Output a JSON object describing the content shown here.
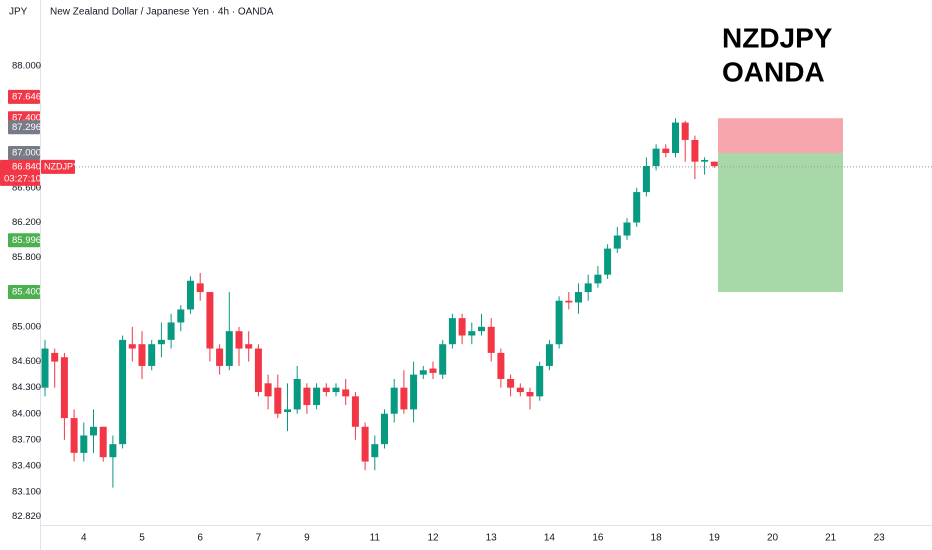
{
  "chart_data": {
    "type": "candlestick",
    "title": "New Zealand Dollar / Japanese Yen · 4h · OANDA",
    "currency": "JPY",
    "watermark": [
      "NZDJPY",
      "OANDA"
    ],
    "up_color": "#089981",
    "down_color": "#f23645",
    "ylim": [
      82.72,
      88.76
    ],
    "yticks": [
      {
        "value": 82.82,
        "label": "82.820"
      },
      {
        "value": 83.1,
        "label": "83.100"
      },
      {
        "value": 83.4,
        "label": "83.400"
      },
      {
        "value": 83.7,
        "label": "83.700"
      },
      {
        "value": 84.0,
        "label": "84.000"
      },
      {
        "value": 84.3,
        "label": "84.300"
      },
      {
        "value": 84.6,
        "label": "84.600"
      },
      {
        "value": 85.0,
        "label": "85.000"
      },
      {
        "value": 85.8,
        "label": "85.800"
      },
      {
        "value": 86.2,
        "label": "86.200"
      },
      {
        "value": 86.6,
        "label": "86.600"
      },
      {
        "value": 88.0,
        "label": "88.000"
      }
    ],
    "categories": [
      null,
      null,
      null,
      null,
      "4",
      null,
      null,
      null,
      null,
      null,
      "5",
      null,
      null,
      null,
      null,
      null,
      "6",
      null,
      null,
      null,
      null,
      null,
      "7",
      null,
      null,
      null,
      null,
      "9",
      null,
      null,
      null,
      null,
      null,
      null,
      "11",
      null,
      null,
      null,
      null,
      null,
      "12",
      null,
      null,
      null,
      null,
      null,
      "13",
      null,
      null,
      null,
      null,
      null,
      "14",
      null,
      null,
      null,
      null,
      "16",
      null,
      null,
      null,
      null,
      null,
      "18",
      null,
      null,
      null,
      null,
      null,
      "19",
      null,
      null,
      null,
      null,
      null,
      "20",
      null,
      null,
      null,
      null,
      null,
      "21",
      null,
      null,
      null,
      null,
      "23"
    ],
    "candles": [
      [
        84.3,
        84.85,
        84.2,
        84.75
      ],
      [
        84.7,
        84.75,
        84.3,
        84.6
      ],
      [
        84.65,
        84.7,
        83.7,
        83.95
      ],
      [
        83.95,
        84.05,
        83.45,
        83.55
      ],
      [
        83.55,
        83.9,
        83.45,
        83.75
      ],
      [
        83.75,
        84.05,
        83.55,
        83.85
      ],
      [
        83.85,
        83.85,
        83.45,
        83.5
      ],
      [
        83.5,
        83.75,
        83.15,
        83.65
      ],
      [
        83.65,
        84.9,
        83.6,
        84.85
      ],
      [
        84.8,
        85.0,
        84.6,
        84.75
      ],
      [
        84.8,
        84.95,
        84.4,
        84.55
      ],
      [
        84.55,
        84.85,
        84.5,
        84.8
      ],
      [
        84.8,
        85.05,
        84.65,
        84.85
      ],
      [
        84.85,
        85.15,
        84.75,
        85.05
      ],
      [
        85.05,
        85.25,
        84.95,
        85.2
      ],
      [
        85.2,
        85.58,
        85.15,
        85.53
      ],
      [
        85.5,
        85.62,
        85.3,
        85.4
      ],
      [
        85.4,
        85.4,
        84.6,
        84.75
      ],
      [
        84.75,
        84.8,
        84.45,
        84.55
      ],
      [
        84.55,
        85.4,
        84.5,
        84.95
      ],
      [
        84.95,
        85.0,
        84.55,
        84.75
      ],
      [
        84.8,
        84.95,
        84.6,
        84.75
      ],
      [
        84.75,
        84.8,
        84.2,
        84.25
      ],
      [
        84.35,
        84.45,
        84.05,
        84.2
      ],
      [
        84.3,
        84.45,
        83.95,
        84.0
      ],
      [
        84.02,
        84.35,
        83.8,
        84.05
      ],
      [
        84.05,
        84.55,
        84.0,
        84.4
      ],
      [
        84.3,
        84.35,
        84.0,
        84.1
      ],
      [
        84.1,
        84.35,
        84.05,
        84.3
      ],
      [
        84.3,
        84.35,
        84.2,
        84.25
      ],
      [
        84.25,
        84.35,
        84.2,
        84.3
      ],
      [
        84.28,
        84.4,
        84.1,
        84.2
      ],
      [
        84.2,
        84.25,
        83.7,
        83.85
      ],
      [
        83.85,
        83.9,
        83.35,
        83.45
      ],
      [
        83.5,
        83.75,
        83.35,
        83.65
      ],
      [
        83.65,
        84.05,
        83.6,
        84.0
      ],
      [
        84.0,
        84.4,
        83.9,
        84.3
      ],
      [
        84.3,
        84.5,
        84.0,
        84.05
      ],
      [
        84.05,
        84.6,
        83.9,
        84.45
      ],
      [
        84.45,
        84.55,
        84.4,
        84.5
      ],
      [
        84.52,
        84.6,
        84.4,
        84.47
      ],
      [
        84.45,
        84.85,
        84.4,
        84.8
      ],
      [
        84.8,
        85.15,
        84.75,
        85.1
      ],
      [
        85.1,
        85.15,
        84.8,
        84.9
      ],
      [
        84.9,
        85.05,
        84.8,
        84.95
      ],
      [
        84.95,
        85.15,
        84.9,
        85.0
      ],
      [
        85.0,
        85.1,
        84.6,
        84.7
      ],
      [
        84.7,
        84.75,
        84.3,
        84.4
      ],
      [
        84.4,
        84.45,
        84.2,
        84.3
      ],
      [
        84.3,
        84.35,
        84.2,
        84.25
      ],
      [
        84.25,
        84.3,
        84.05,
        84.2
      ],
      [
        84.2,
        84.6,
        84.15,
        84.55
      ],
      [
        84.55,
        84.85,
        84.5,
        84.8
      ],
      [
        84.8,
        85.35,
        84.75,
        85.3
      ],
      [
        85.3,
        85.4,
        85.2,
        85.28
      ],
      [
        85.28,
        85.5,
        85.15,
        85.4
      ],
      [
        85.4,
        85.6,
        85.3,
        85.5
      ],
      [
        85.5,
        85.7,
        85.45,
        85.6
      ],
      [
        85.6,
        85.95,
        85.55,
        85.9
      ],
      [
        85.9,
        86.15,
        85.85,
        86.05
      ],
      [
        86.05,
        86.25,
        86.0,
        86.2
      ],
      [
        86.2,
        86.6,
        86.15,
        86.55
      ],
      [
        86.55,
        86.95,
        86.5,
        86.85
      ],
      [
        86.85,
        87.1,
        86.8,
        87.05
      ],
      [
        87.05,
        87.1,
        86.95,
        87.0
      ],
      [
        87.0,
        87.4,
        86.95,
        87.35
      ],
      [
        87.35,
        87.37,
        86.9,
        87.15
      ],
      [
        87.15,
        87.2,
        86.7,
        86.9
      ],
      [
        86.9,
        86.95,
        86.75,
        86.92
      ],
      [
        86.9,
        86.9,
        86.83,
        86.85
      ]
    ],
    "position": {
      "stop": 87.4,
      "entry": 87.0,
      "target": 85.4,
      "stop_color": "#f7a6ad",
      "target_color": "#a8d8a8"
    },
    "current": {
      "value": 86.84,
      "label": "86.840",
      "countdown": "03:27:10",
      "symbol": "NZDJPY",
      "color": "#f23645"
    },
    "badges": [
      {
        "value": 87.646,
        "label": "87.646",
        "color": "#f23645"
      },
      {
        "value": 87.4,
        "label": "87.400",
        "color": "#f23645"
      },
      {
        "value": 87.296,
        "label": "87.296",
        "color": "#787b86"
      },
      {
        "value": 87.0,
        "label": "87.000",
        "color": "#787b86"
      },
      {
        "value": 85.996,
        "label": "85.996",
        "color": "#4caf50"
      },
      {
        "value": 85.4,
        "label": "85.400",
        "color": "#4caf50"
      }
    ]
  }
}
